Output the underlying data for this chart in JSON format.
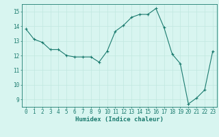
{
  "x": [
    0,
    1,
    2,
    3,
    4,
    5,
    6,
    7,
    8,
    9,
    10,
    11,
    12,
    13,
    14,
    15,
    16,
    17,
    18,
    19,
    20,
    21,
    22,
    23
  ],
  "y": [
    13.8,
    13.1,
    12.9,
    12.4,
    12.4,
    12.0,
    11.9,
    11.9,
    11.9,
    11.55,
    12.3,
    13.65,
    14.05,
    14.6,
    14.8,
    14.8,
    15.2,
    13.9,
    12.1,
    11.45,
    8.7,
    9.1,
    9.65,
    12.3
  ],
  "line_color": "#1a7a6e",
  "marker": "+",
  "marker_size": 3,
  "background_color": "#d8f5f0",
  "grid_color": "#c0e8e0",
  "xlabel": "Humidex (Indice chaleur)",
  "xlim": [
    -0.5,
    23.5
  ],
  "ylim": [
    8.5,
    15.5
  ],
  "yticks": [
    9,
    10,
    11,
    12,
    13,
    14,
    15
  ],
  "xticks": [
    0,
    1,
    2,
    3,
    4,
    5,
    6,
    7,
    8,
    9,
    10,
    11,
    12,
    13,
    14,
    15,
    16,
    17,
    18,
    19,
    20,
    21,
    22,
    23
  ],
  "tick_color": "#1a7a6e",
  "axis_color": "#1a7a6e",
  "label_fontsize": 6.5,
  "tick_fontsize": 5.5
}
